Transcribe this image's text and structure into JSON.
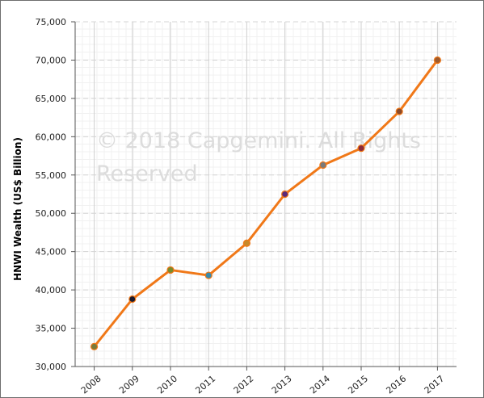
{
  "chart_data": {
    "type": "line",
    "categories": [
      "2008",
      "2009",
      "2010",
      "2011",
      "2012",
      "2013",
      "2014",
      "2015",
      "2016",
      "2017"
    ],
    "series": [
      {
        "values": [
          32600,
          38800,
          42600,
          41900,
          46100,
          52500,
          56300,
          58500,
          63300,
          70000
        ],
        "color": "#f07818",
        "marker_colors": [
          "#7a7a3a",
          "#1a1a2e",
          "#7a8a2a",
          "#3a8aaa",
          "#c8882a",
          "#5a2a7a",
          "#7a7a7a",
          "#8a2a3a",
          "#8a4a2a",
          "#a05a2a"
        ]
      }
    ],
    "title": "",
    "xlabel": "",
    "ylabel": "HNWI Wealth (US$ Billion)",
    "ylim": [
      30000,
      75000
    ],
    "y_ticks": [
      30000,
      35000,
      40000,
      45000,
      50000,
      55000,
      60000,
      65000,
      70000,
      75000
    ],
    "y_tick_labels": [
      "30,000",
      "35,000",
      "40,000",
      "45,000",
      "50,000",
      "55,000",
      "60,000",
      "65,000",
      "70,000",
      "75,000"
    ],
    "grid": true,
    "watermark_lines": [
      "© 2018 Capgemini. All Rights",
      "Reserved"
    ]
  }
}
